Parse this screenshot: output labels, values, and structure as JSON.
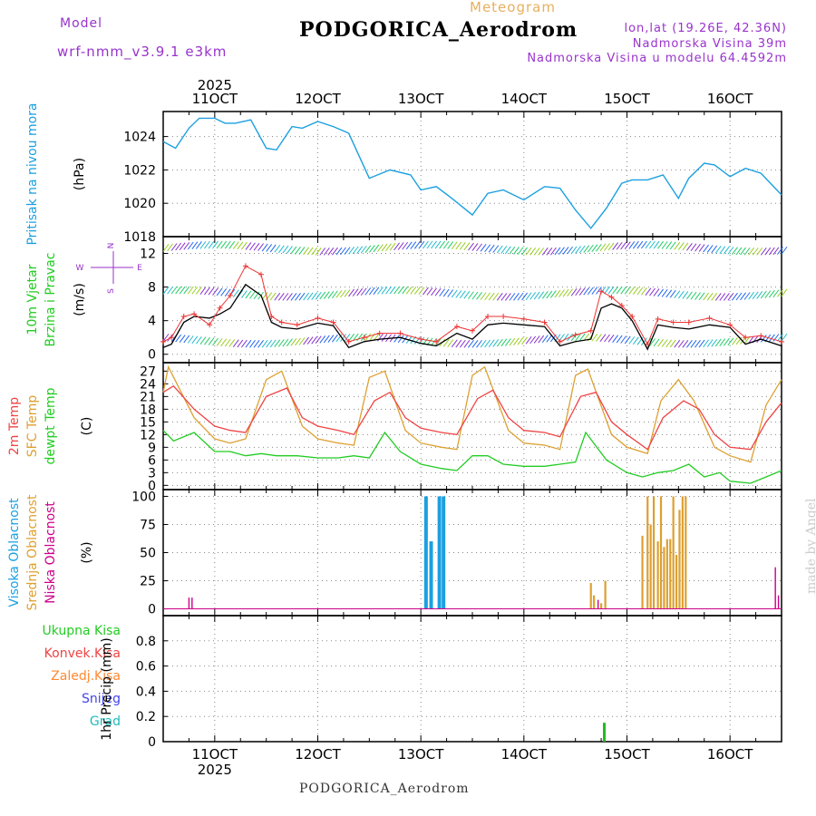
{
  "header": {
    "model_label": "Model",
    "model_name": "wrf-nmm_v3.9.1 e3km",
    "product": "Meteogram",
    "station": "PODGORICA_Aerodrom",
    "coords": "lon,lat (19.26E, 42.36N)",
    "elevation": "Nadmorska Visina 39m",
    "model_elevation": "Nadmorska Visina u modelu 64.4592m",
    "footer_station": "PODGORICA_Aerodrom",
    "watermark": "made by Angel"
  },
  "colors": {
    "pressure": "#1ba0e0",
    "wind_speed": "#000000",
    "wind_gust": "#ee3333",
    "temp_2m": "#ee4444",
    "temp_sfc": "#dda030",
    "temp_dewpt": "#22cc22",
    "cloud_high": "#1ba0e0",
    "cloud_mid": "#dda030",
    "cloud_low": "#cc0088",
    "precip_total": "#22bb22",
    "grid": "#888888",
    "label_green": "#22cc22",
    "label_red": "#ee4444",
    "label_orange": "#ff8833",
    "label_blue": "#4444ee",
    "label_cyan": "#22bbbb",
    "label_purple": "#9933cc",
    "label_gold": "#e8b060"
  },
  "axis": {
    "year": "2025",
    "dates": [
      "11OCT",
      "12OCT",
      "13OCT",
      "14OCT",
      "15OCT",
      "16OCT"
    ],
    "start_day": 10.5,
    "end_day": 16.5
  },
  "chart_data": [
    {
      "type": "line",
      "panel": "pressure",
      "ylabel": [
        "Pritisak na nivou mora",
        "(hPa)"
      ],
      "ylim": [
        1018,
        1025.5
      ],
      "yticks": [
        1018,
        1020,
        1022,
        1024
      ],
      "series": [
        {
          "name": "Pritisak na nivou mora",
          "x": [
            10.5,
            10.62,
            10.75,
            10.85,
            11.0,
            11.1,
            11.2,
            11.35,
            11.5,
            11.6,
            11.75,
            11.85,
            12.0,
            12.15,
            12.3,
            12.5,
            12.7,
            12.9,
            13.0,
            13.15,
            13.3,
            13.5,
            13.65,
            13.8,
            14.0,
            14.2,
            14.35,
            14.5,
            14.65,
            14.8,
            14.95,
            15.05,
            15.2,
            15.35,
            15.5,
            15.6,
            15.75,
            15.85,
            16.0,
            16.15,
            16.3,
            16.5
          ],
          "values": [
            1023.7,
            1023.3,
            1024.5,
            1025.1,
            1025.1,
            1024.8,
            1024.8,
            1025.0,
            1023.3,
            1023.2,
            1024.6,
            1024.5,
            1024.9,
            1024.6,
            1024.2,
            1021.5,
            1022.0,
            1021.7,
            1020.8,
            1021.0,
            1020.3,
            1019.3,
            1020.6,
            1020.8,
            1020.2,
            1021.0,
            1020.9,
            1019.6,
            1018.5,
            1019.7,
            1021.2,
            1021.4,
            1021.4,
            1021.7,
            1020.3,
            1021.5,
            1022.4,
            1022.3,
            1021.6,
            1022.1,
            1021.8,
            1020.5
          ]
        }
      ]
    },
    {
      "type": "line",
      "panel": "wind",
      "ylabel": [
        "10m Vjetar",
        "Brzina i Pravac",
        "(m/s)"
      ],
      "ylim": [
        -1,
        14
      ],
      "yticks": [
        0,
        4,
        8,
        12
      ],
      "compass": [
        "N",
        "W",
        "E",
        "S"
      ],
      "series": [
        {
          "name": "Brzina",
          "x": [
            10.5,
            10.58,
            10.7,
            10.8,
            10.95,
            11.05,
            11.15,
            11.3,
            11.45,
            11.55,
            11.65,
            11.8,
            12.0,
            12.15,
            12.3,
            12.45,
            12.6,
            12.8,
            13.0,
            13.15,
            13.35,
            13.5,
            13.65,
            13.8,
            14.0,
            14.2,
            14.35,
            14.5,
            14.65,
            14.75,
            14.85,
            14.95,
            15.05,
            15.2,
            15.3,
            15.45,
            15.6,
            15.8,
            16.0,
            16.15,
            16.3,
            16.5
          ],
          "values": [
            0.8,
            1.2,
            3.8,
            4.5,
            4.3,
            4.8,
            5.5,
            8.3,
            7.0,
            3.8,
            3.2,
            3.0,
            3.7,
            3.4,
            0.8,
            1.5,
            1.8,
            2.0,
            1.3,
            1.0,
            2.5,
            1.8,
            3.5,
            3.7,
            3.5,
            3.3,
            1.0,
            1.5,
            1.8,
            5.5,
            6.0,
            5.5,
            4.0,
            0.6,
            3.5,
            3.2,
            3.0,
            3.5,
            3.2,
            1.2,
            1.8,
            1.0
          ]
        },
        {
          "name": "Udar",
          "x": [
            10.5,
            10.58,
            10.7,
            10.8,
            10.95,
            11.05,
            11.15,
            11.3,
            11.45,
            11.55,
            11.65,
            11.8,
            12.0,
            12.15,
            12.3,
            12.45,
            12.6,
            12.8,
            13.0,
            13.15,
            13.35,
            13.5,
            13.65,
            13.8,
            14.0,
            14.2,
            14.35,
            14.5,
            14.65,
            14.75,
            14.85,
            14.95,
            15.05,
            15.2,
            15.3,
            15.45,
            15.6,
            15.8,
            16.0,
            16.15,
            16.3,
            16.5
          ],
          "values": [
            1.5,
            2.0,
            4.5,
            4.8,
            3.5,
            5.5,
            7.0,
            10.5,
            9.5,
            4.5,
            3.8,
            3.5,
            4.3,
            3.8,
            1.5,
            2.0,
            2.5,
            2.5,
            1.8,
            1.5,
            3.3,
            2.8,
            4.5,
            4.5,
            4.2,
            3.8,
            1.5,
            2.3,
            2.8,
            7.5,
            6.8,
            5.8,
            4.5,
            1.2,
            4.2,
            3.8,
            3.8,
            4.3,
            3.5,
            2.0,
            2.2,
            1.5
          ]
        }
      ]
    },
    {
      "type": "line",
      "panel": "temperature",
      "ylabel": [
        "2m Temp",
        "SFC Temp",
        "dewpt Temp",
        "(C)"
      ],
      "ylim": [
        -1,
        29
      ],
      "yticks": [
        0,
        3,
        6,
        9,
        12,
        15,
        18,
        21,
        24,
        27
      ],
      "series": [
        {
          "name": "2m Temp",
          "x": [
            10.5,
            10.6,
            10.8,
            11.0,
            11.15,
            11.3,
            11.5,
            11.7,
            11.85,
            12.0,
            12.2,
            12.35,
            12.55,
            12.7,
            12.85,
            13.0,
            13.2,
            13.35,
            13.55,
            13.7,
            13.85,
            14.0,
            14.2,
            14.35,
            14.55,
            14.7,
            14.85,
            15.0,
            15.2,
            15.35,
            15.55,
            15.7,
            15.85,
            16.0,
            16.2,
            16.35,
            16.5
          ],
          "values": [
            22,
            23.5,
            18,
            14,
            13,
            12.5,
            21,
            23,
            16,
            14,
            13,
            12,
            20,
            22,
            16,
            13.5,
            12.5,
            12,
            20.5,
            22.5,
            16,
            13,
            12.5,
            11.5,
            21,
            22,
            15,
            12,
            8.5,
            16,
            20,
            18,
            12,
            9,
            8.5,
            15,
            19.5
          ]
        },
        {
          "name": "SFC Temp",
          "x": [
            10.5,
            10.55,
            10.8,
            11.0,
            11.15,
            11.3,
            11.5,
            11.65,
            11.85,
            12.0,
            12.2,
            12.35,
            12.5,
            12.65,
            12.85,
            13.0,
            13.2,
            13.35,
            13.5,
            13.62,
            13.85,
            14.0,
            14.2,
            14.35,
            14.5,
            14.62,
            14.85,
            15.0,
            15.2,
            15.33,
            15.5,
            15.65,
            15.85,
            16.0,
            16.2,
            16.35,
            16.5
          ],
          "values": [
            22,
            28,
            16,
            11,
            10,
            11,
            25,
            27,
            14,
            11,
            10,
            9.5,
            25.5,
            27,
            13,
            10,
            9,
            8.5,
            26,
            28,
            13,
            10,
            9.5,
            8.5,
            26,
            27.5,
            12,
            9,
            7.5,
            20,
            25,
            20,
            9,
            7,
            5.5,
            19,
            25
          ]
        },
        {
          "name": "dewpt Temp",
          "x": [
            10.5,
            10.6,
            10.8,
            11.0,
            11.15,
            11.3,
            11.45,
            11.6,
            11.8,
            12.0,
            12.2,
            12.35,
            12.5,
            12.65,
            12.8,
            13.0,
            13.2,
            13.35,
            13.5,
            13.65,
            13.8,
            14.0,
            14.2,
            14.35,
            14.5,
            14.6,
            14.8,
            15.0,
            15.15,
            15.3,
            15.45,
            15.6,
            15.75,
            15.9,
            16.0,
            16.2,
            16.35,
            16.5
          ],
          "values": [
            13,
            10.5,
            12.5,
            8,
            8,
            7,
            7.5,
            7,
            7,
            6.5,
            6.5,
            7,
            6.5,
            12.5,
            8,
            5,
            4,
            3.5,
            7,
            7,
            5,
            4.5,
            4.5,
            5,
            5.5,
            12.5,
            6,
            3,
            2,
            3,
            3.5,
            5,
            2,
            3,
            1,
            0.5,
            2,
            3.5
          ]
        }
      ]
    },
    {
      "type": "bar",
      "panel": "clouds",
      "ylabel": [
        "Visoka Oblacnost",
        "Srednja Oblacnost",
        "Niska Oblacnost",
        "(%)"
      ],
      "ylim": [
        -6,
        106
      ],
      "yticks": [
        0,
        25,
        50,
        75,
        100
      ],
      "series": [
        {
          "name": "Visoka Oblacnost",
          "x": [
            13.05,
            13.1,
            13.18,
            13.22
          ],
          "values": [
            100,
            60,
            100,
            100
          ]
        },
        {
          "name": "Srednja Oblacnost",
          "x": [
            14.65,
            14.68,
            14.75,
            14.79,
            15.15,
            15.2,
            15.23,
            15.26,
            15.3,
            15.33,
            15.36,
            15.39,
            15.42,
            15.45,
            15.48,
            15.51,
            15.54,
            15.57
          ],
          "values": [
            23,
            12,
            5,
            25,
            65,
            100,
            75,
            100,
            60,
            100,
            55,
            62,
            62,
            100,
            48,
            88,
            100,
            100
          ]
        },
        {
          "name": "Niska Oblacnost",
          "x": [
            10.75,
            10.78,
            14.72,
            16.44,
            16.47
          ],
          "values": [
            10,
            10,
            8,
            37,
            12
          ]
        }
      ]
    },
    {
      "type": "bar",
      "panel": "precip",
      "ylabel": [
        "Ukupna Kisa",
        "Konvek.Kisa",
        "Zaledj.Kisa",
        "Snijeg",
        "Grad",
        "1hr Precip (mm)"
      ],
      "ylim": [
        0,
        1.0
      ],
      "yticks": [
        0,
        0.2,
        0.4,
        0.6,
        0.8
      ],
      "series": [
        {
          "name": "Ukupna Kisa",
          "x": [
            14.78
          ],
          "values": [
            0.15
          ]
        }
      ]
    }
  ]
}
